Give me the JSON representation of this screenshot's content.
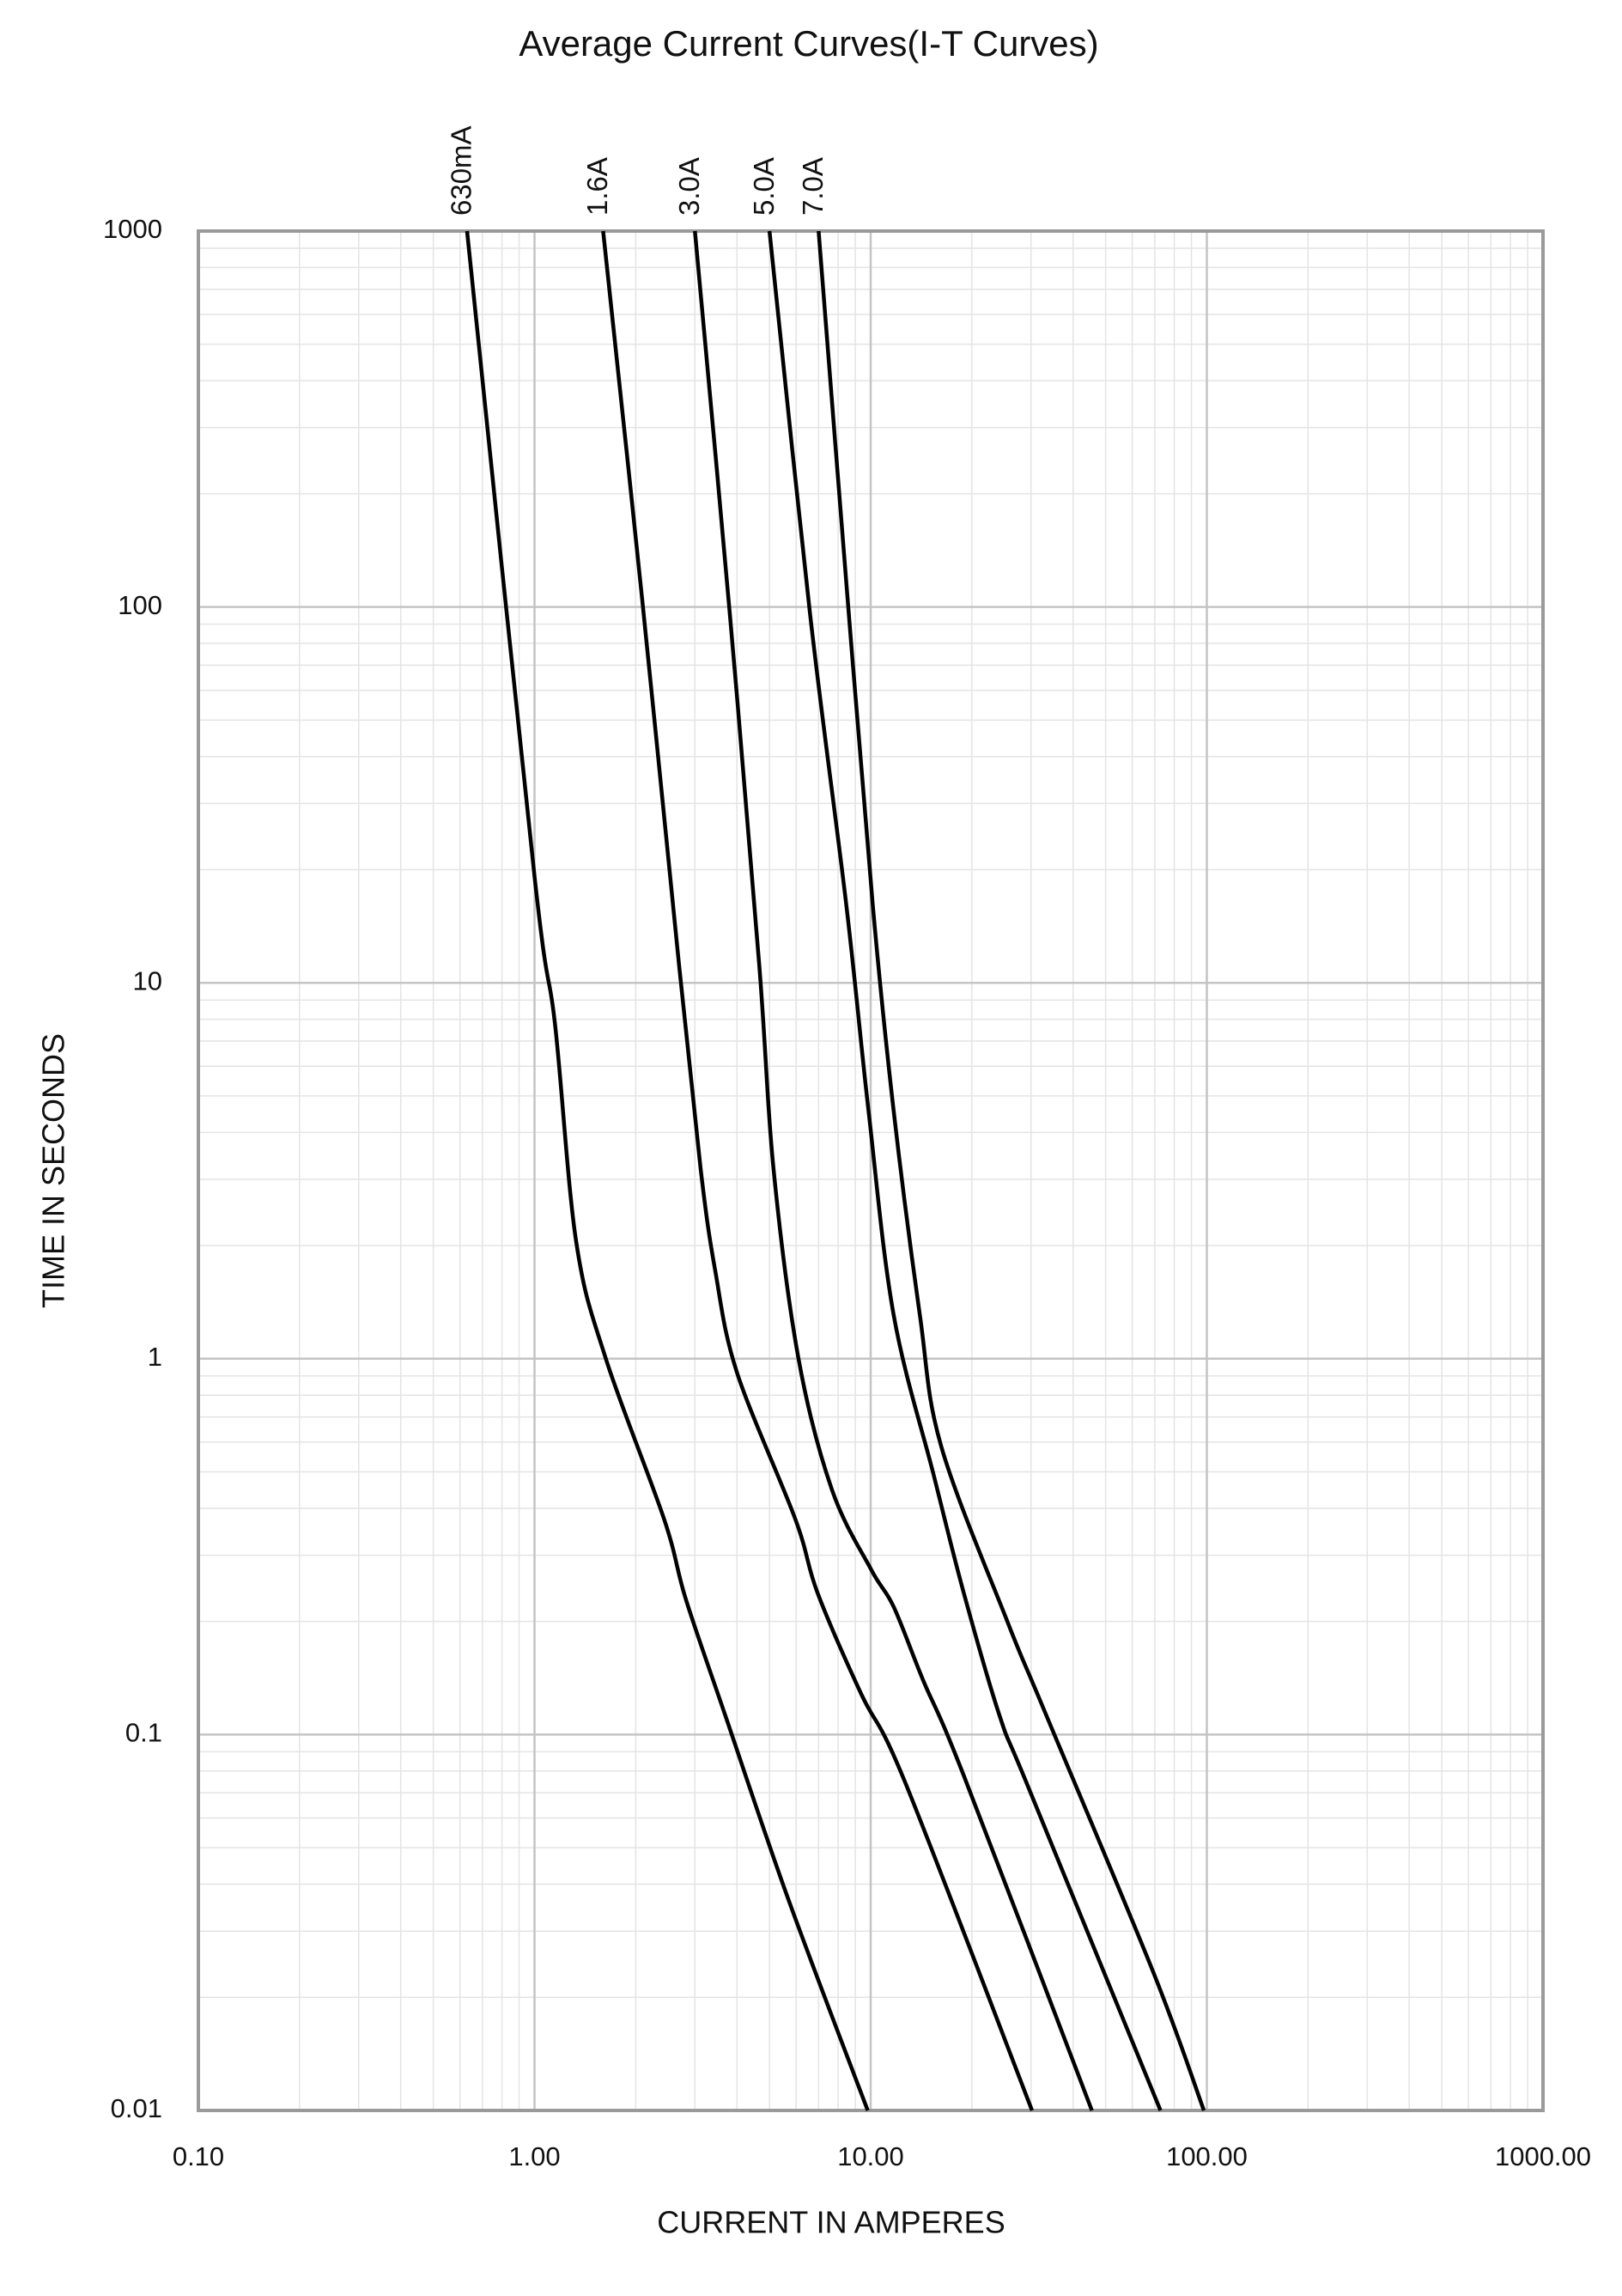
{
  "chart_data": {
    "type": "line",
    "title": "Average Current Curves(I-T Curves)",
    "x_label": "CURRENT IN AMPERES",
    "y_label": "TIME IN SECONDS",
    "x_scale": "log",
    "y_scale": "log",
    "grid": true,
    "minor_grid": true,
    "legend": "top-labels",
    "xlim": [
      0.1,
      1000
    ],
    "ylim": [
      0.01,
      1000
    ],
    "xticks": [
      {
        "value": 0.1,
        "label": "0.10"
      },
      {
        "value": 1,
        "label": "1.00"
      },
      {
        "value": 10,
        "label": "10.00"
      },
      {
        "value": 100,
        "label": "100.00"
      },
      {
        "value": 1000,
        "label": "1000.00"
      }
    ],
    "yticks": [
      0.01,
      0.1,
      1,
      10,
      100,
      1000
    ],
    "series": [
      {
        "name": "630mA",
        "color": "#000000",
        "x": [
          0.63,
          1.0,
          1.15,
          1.33,
          1.63,
          2.43,
          2.82,
          3.7,
          5.68,
          9.8
        ],
        "values": [
          1000,
          19.2,
          7.8,
          2.05,
          1.0,
          0.374,
          0.229,
          0.112,
          0.0366,
          0.01
        ]
      },
      {
        "name": "1.6A",
        "color": "#000000",
        "x": [
          1.6,
          2.09,
          2.69,
          3.12,
          3.45,
          4.0,
          5.97,
          6.94,
          9.38,
          12.65,
          30.2
        ],
        "values": [
          1000,
          105,
          11.2,
          3.2,
          1.71,
          0.92,
          0.374,
          0.239,
          0.128,
          0.0748,
          0.01
        ]
      },
      {
        "name": "3.0A",
        "color": "#000000",
        "x": [
          3.0,
          3.81,
          4.66,
          5.14,
          6.1,
          7.67,
          10.05,
          11.7,
          14.3,
          18.9,
          45.5
        ],
        "values": [
          1000,
          96,
          11.2,
          3.2,
          1.0,
          0.448,
          0.274,
          0.219,
          0.14,
          0.078,
          0.01
        ]
      },
      {
        "name": "5.0A",
        "color": "#000000",
        "x": [
          5.0,
          6.6,
          8.47,
          9.85,
          11.7,
          15.4,
          18.9,
          24.2,
          29.6,
          72.8
        ],
        "values": [
          1000,
          96,
          16.0,
          4.58,
          1.31,
          0.49,
          0.239,
          0.112,
          0.0716,
          0.01
        ]
      },
      {
        "name": "7.0A",
        "color": "#000000",
        "x": [
          7.0,
          8.47,
          10.15,
          11.7,
          14.0,
          16.2,
          25.5,
          32.7,
          69.2,
          98
        ],
        "values": [
          1000,
          115,
          16.0,
          4.58,
          1.31,
          0.586,
          0.2,
          0.117,
          0.0234,
          0.01
        ]
      }
    ]
  }
}
